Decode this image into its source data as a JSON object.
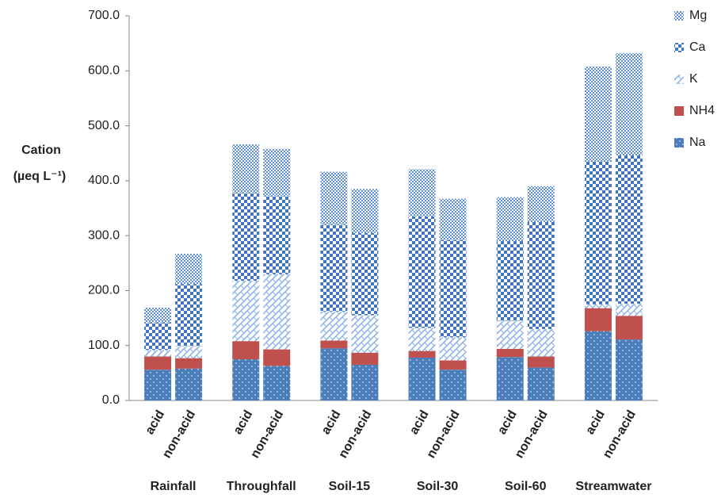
{
  "chart_data": {
    "type": "bar",
    "stacked": true,
    "y_label": "Cation",
    "y_label_unit": "(µeq L⁻¹)",
    "categories": [
      "acid",
      "non-acid",
      "acid",
      "non-acid",
      "acid",
      "non-acid",
      "acid",
      "non-acid",
      "acid",
      "non-acid",
      "acid",
      "non-acid"
    ],
    "groups": [
      "Rainfall",
      "Throughfall",
      "Soil-15",
      "Soil-30",
      "Soil-60",
      "Streamwater"
    ],
    "series": [
      {
        "name": "Na",
        "color": "#4a7ebb",
        "pattern": "dots",
        "values": [
          56,
          58,
          75,
          63,
          95,
          65,
          78,
          56,
          79,
          60,
          126,
          111
        ]
      },
      {
        "name": "NH4",
        "color": "#c0504d",
        "pattern": "solid",
        "values": [
          24,
          19,
          33,
          30,
          14,
          22,
          12,
          17,
          15,
          20,
          42,
          43
        ]
      },
      {
        "name": "K",
        "color": "#8eb4e3",
        "pattern": "hatch",
        "values": [
          12,
          22,
          110,
          137,
          53,
          68,
          42,
          42,
          51,
          50,
          7,
          22
        ]
      },
      {
        "name": "Ca",
        "color": "#3f74c0",
        "pattern": "checker",
        "values": [
          50,
          113,
          160,
          142,
          158,
          150,
          203,
          177,
          145,
          195,
          260,
          270
        ]
      },
      {
        "name": "Mg",
        "color": "#5b8fd0",
        "pattern": "fine",
        "values": [
          27,
          55,
          88,
          86,
          96,
          80,
          86,
          75,
          80,
          65,
          173,
          186
        ]
      }
    ],
    "ylim": [
      0,
      700
    ],
    "yticks": [
      {
        "value": 0,
        "label": "0.0"
      },
      {
        "value": 100,
        "label": "100.0"
      },
      {
        "value": 200,
        "label": "200.0"
      },
      {
        "value": 300,
        "label": "300.0"
      },
      {
        "value": 400,
        "label": "400.0"
      },
      {
        "value": 500,
        "label": "500.0"
      },
      {
        "value": 600,
        "label": "600.0"
      },
      {
        "value": 700,
        "label": "700.0"
      }
    ],
    "legend": "right"
  }
}
